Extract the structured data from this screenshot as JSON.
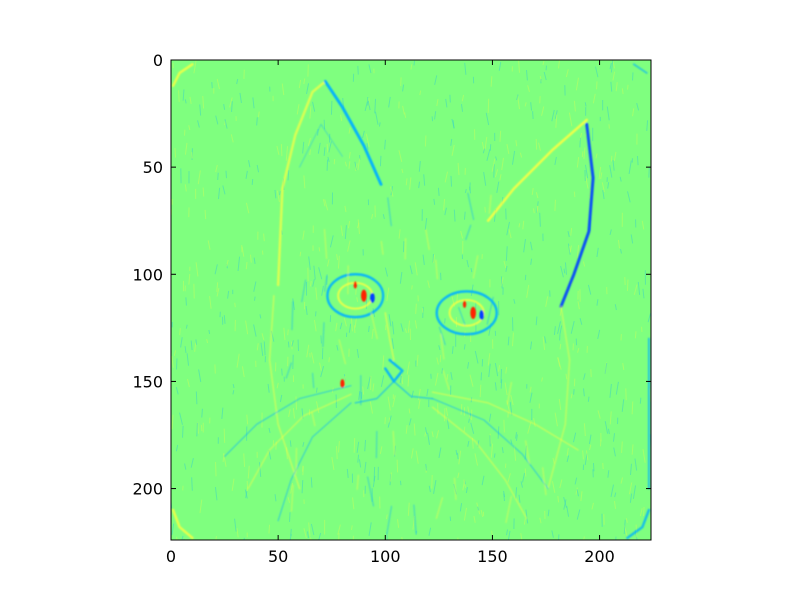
{
  "chart_data": {
    "type": "heatmap",
    "title": "",
    "xlabel": "",
    "ylabel": "",
    "image_size": [
      224,
      224
    ],
    "xlim": [
      0,
      224
    ],
    "ylim": [
      224,
      0
    ],
    "x_ticks": [
      0,
      50,
      100,
      150,
      200
    ],
    "y_ticks": [
      0,
      50,
      100,
      150,
      200
    ],
    "x_tick_labels": [
      "0",
      "50",
      "100",
      "150",
      "200"
    ],
    "y_tick_labels": [
      "0",
      "50",
      "100",
      "150",
      "200"
    ],
    "grid": false,
    "colormap": "jet",
    "colors": {
      "background": "#7fff7f",
      "positive_edge": "#ffff40",
      "negative_edge": "#00b0ff",
      "strong_negative": "#0040ff",
      "strong_positive": "#ff2000"
    },
    "content": "edge-filtered kitten face (convolution feature map)"
  }
}
